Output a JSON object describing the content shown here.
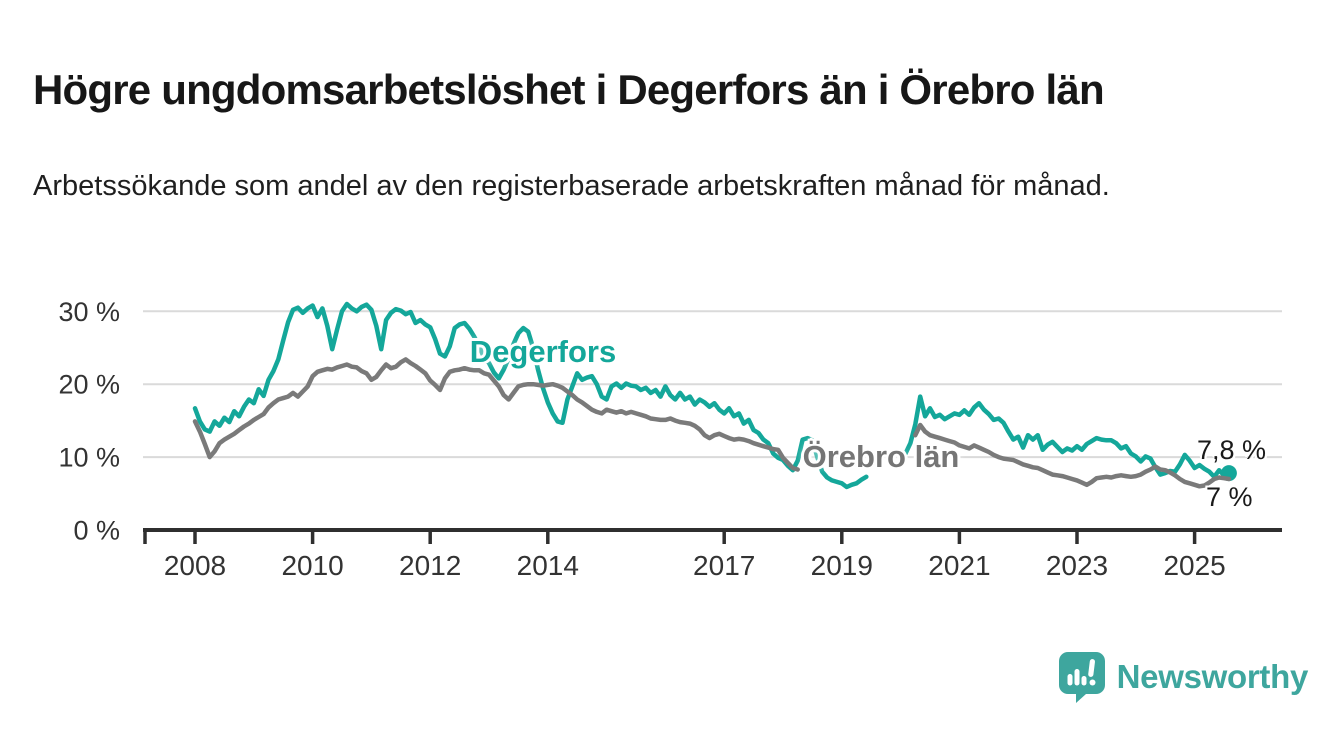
{
  "header": {
    "title": "Högre ungdomsarbetslöshet i Degerfors än i Örebro län",
    "subtitle": "Arbetssökande som andel av den registerbaserade arbetskraften månad för månad."
  },
  "chart_data": {
    "type": "line",
    "unit": "percent",
    "frequency": "monthly",
    "x_axis": {
      "ticks": [
        {
          "value": 2008,
          "label": "2008"
        },
        {
          "value": 2010,
          "label": "2010"
        },
        {
          "value": 2012,
          "label": "2012"
        },
        {
          "value": 2014,
          "label": "2014"
        },
        {
          "value": 2017,
          "label": "2017"
        },
        {
          "value": 2019,
          "label": "2019"
        },
        {
          "value": 2021,
          "label": "2021"
        },
        {
          "value": 2023,
          "label": "2023"
        },
        {
          "value": 2025,
          "label": "2025"
        }
      ]
    },
    "y_axis": {
      "ticks": [
        {
          "value": 0,
          "label": "0 %"
        },
        {
          "value": 10,
          "label": "10 %"
        },
        {
          "value": 20,
          "label": "20 %"
        },
        {
          "value": 30,
          "label": "30 %"
        }
      ],
      "grid": true,
      "ylim": [
        0,
        34
      ]
    },
    "colors": {
      "degerfors": "#14a79a",
      "orebro_lan": "#7a7a7a",
      "grid": "#dadada",
      "axis": "#2f2f2f",
      "tick_text": "#333333"
    },
    "series": [
      {
        "name": "Degerfors",
        "color": "#14a79a",
        "start_year": 2008,
        "start_month": 1,
        "end_dot": true,
        "monthly_values": [
          16.7,
          14.9,
          13.8,
          13.5,
          14.9,
          14.3,
          15.4,
          14.8,
          16.3,
          15.6,
          16.9,
          17.9,
          17.4,
          19.3,
          18.4,
          20.6,
          21.8,
          23.4,
          26.0,
          28.5,
          30.2,
          30.5,
          29.8,
          30.4,
          30.8,
          29.2,
          30.4,
          28.0,
          24.8,
          27.5,
          30.0,
          31.0,
          30.4,
          30.0,
          30.6,
          30.9,
          30.2,
          28.0,
          24.8,
          28.8,
          29.8,
          30.3,
          30.1,
          29.6,
          29.9,
          28.4,
          28.8,
          28.2,
          27.8,
          26.2,
          24.2,
          23.8,
          25.2,
          27.7,
          28.2,
          28.4,
          27.6,
          26.5,
          25.2,
          23.6,
          22.9,
          21.6,
          20.8,
          22.0,
          23.5,
          25.5,
          27.0,
          27.7,
          27.2,
          25.0,
          22.0,
          19.5,
          17.5,
          16.0,
          14.9,
          14.7,
          17.9,
          19.7,
          21.5,
          20.6,
          20.9,
          21.1,
          20.0,
          18.3,
          17.9,
          19.7,
          20.1,
          19.5,
          20.1,
          19.8,
          19.7,
          19.2,
          19.5,
          18.8,
          19.2,
          18.3,
          19.7,
          18.5,
          17.9,
          18.8,
          17.9,
          18.3,
          17.2,
          17.9,
          17.5,
          16.9,
          17.4,
          16.5,
          16.0,
          16.7,
          15.6,
          16.0,
          14.6,
          15.1,
          13.7,
          13.3,
          12.4,
          11.9,
          10.5,
          9.9,
          9.6,
          8.8,
          8.2,
          9.5,
          12.4,
          12.6,
          12.3,
          10.0,
          8.0,
          7.2,
          6.8,
          6.6,
          6.4,
          5.9,
          6.2,
          6.4,
          6.9,
          7.3,
          null,
          null,
          null,
          null,
          null,
          null,
          9.2,
          10.5,
          11.9,
          14.5,
          18.3,
          15.6,
          16.7,
          15.5,
          15.8,
          15.2,
          15.6,
          16.0,
          15.8,
          16.4,
          15.8,
          16.8,
          17.4,
          16.5,
          15.9,
          15.1,
          15.3,
          14.7,
          13.5,
          12.4,
          12.8,
          11.3,
          13.0,
          12.4,
          13.0,
          11.0,
          11.7,
          12.1,
          11.4,
          10.7,
          11.2,
          10.9,
          11.5,
          11.0,
          11.8,
          12.2,
          12.6,
          12.4,
          12.3,
          12.3,
          11.9,
          11.2,
          11.5,
          10.5,
          10.1,
          9.4,
          10.1,
          9.8,
          8.6,
          7.6,
          7.8,
          8.1,
          8.0,
          9.0,
          10.3,
          9.5,
          8.5,
          8.9,
          8.4,
          8.0,
          7.3,
          8.2,
          7.5,
          7.8
        ]
      },
      {
        "name": "Örebro län",
        "color": "#7a7a7a",
        "start_year": 2008,
        "start_month": 1,
        "end_dot": false,
        "monthly_values": [
          14.9,
          13.5,
          11.8,
          10.0,
          10.8,
          11.9,
          12.4,
          12.8,
          13.2,
          13.7,
          14.2,
          14.6,
          15.1,
          15.5,
          15.9,
          16.8,
          17.4,
          17.9,
          18.1,
          18.3,
          18.8,
          18.3,
          19.0,
          19.7,
          21.1,
          21.7,
          21.9,
          22.1,
          22.0,
          22.3,
          22.5,
          22.7,
          22.4,
          22.3,
          21.8,
          21.5,
          20.6,
          21.0,
          21.9,
          22.7,
          22.2,
          22.4,
          23.0,
          23.4,
          22.9,
          22.5,
          22.0,
          21.5,
          20.5,
          19.9,
          19.2,
          20.8,
          21.7,
          21.9,
          22.0,
          22.2,
          22.0,
          21.9,
          21.9,
          21.5,
          21.3,
          20.5,
          19.7,
          18.5,
          17.9,
          18.8,
          19.7,
          19.9,
          20.0,
          20.0,
          19.9,
          19.8,
          19.9,
          20.0,
          19.8,
          19.5,
          19.0,
          18.5,
          17.9,
          17.5,
          17.0,
          16.5,
          16.2,
          16.0,
          16.5,
          16.3,
          16.1,
          16.3,
          16.0,
          16.2,
          16.0,
          15.8,
          15.6,
          15.3,
          15.2,
          15.1,
          15.1,
          15.3,
          15.0,
          14.8,
          14.7,
          14.6,
          14.3,
          13.8,
          13.0,
          12.6,
          13.0,
          13.2,
          12.9,
          12.6,
          12.4,
          12.5,
          12.4,
          12.2,
          11.9,
          11.7,
          11.5,
          11.3,
          11.1,
          11.0,
          9.9,
          9.2,
          8.5,
          8.3,
          null,
          null,
          null,
          null,
          null,
          null,
          null,
          null,
          null,
          null,
          null,
          null,
          null,
          null,
          null,
          null,
          null,
          null,
          null,
          null,
          null,
          null,
          null,
          13.0,
          14.4,
          13.5,
          13.0,
          12.8,
          12.6,
          12.4,
          12.2,
          12.0,
          11.6,
          11.4,
          11.2,
          11.6,
          11.3,
          11.0,
          10.7,
          10.3,
          10.0,
          9.8,
          9.7,
          9.6,
          9.3,
          9.0,
          8.8,
          8.6,
          8.5,
          8.2,
          7.9,
          7.6,
          7.5,
          7.4,
          7.2,
          7.0,
          6.8,
          6.5,
          6.2,
          6.6,
          7.1,
          7.2,
          7.3,
          7.2,
          7.4,
          7.5,
          7.4,
          7.3,
          7.4,
          7.6,
          8.0,
          8.3,
          8.7,
          8.3,
          8.2,
          7.9,
          7.5,
          7.0,
          6.6,
          6.4,
          6.2,
          6.0,
          6.1,
          6.5,
          7.0,
          7.2,
          7.1,
          7.0
        ]
      }
    ],
    "end_labels": [
      {
        "series": "Degerfors",
        "text": "7,8 %"
      },
      {
        "series": "Örebro län",
        "text": "7 %"
      }
    ]
  },
  "logo": {
    "text": "Newsworthy",
    "color": "#3ea69e"
  }
}
